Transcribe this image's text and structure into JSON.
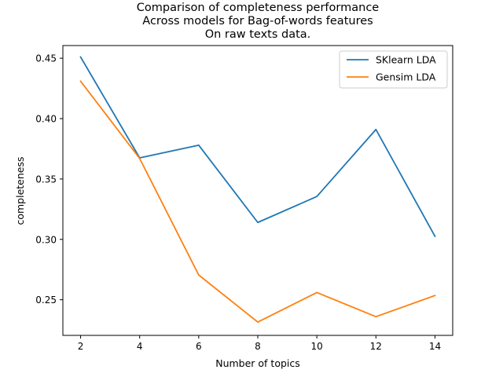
{
  "chart_data": {
    "type": "line",
    "title": [
      "Comparison of completeness performance",
      "Across models for Bag-of-words features",
      "On raw texts data."
    ],
    "xlabel": "Number of topics",
    "ylabel": "completeness",
    "x": [
      2,
      4,
      6,
      8,
      10,
      12,
      14
    ],
    "xticks": [
      "2",
      "4",
      "6",
      "8",
      "10",
      "12",
      "14"
    ],
    "xlim": [
      1.4,
      14.6
    ],
    "yticks": [
      "0.25",
      "0.30",
      "0.35",
      "0.40",
      "0.45"
    ],
    "ytick_values": [
      0.25,
      0.3,
      0.35,
      0.4,
      0.45
    ],
    "ylim": [
      0.2205,
      0.4605
    ],
    "grid": false,
    "legend_position": "top-right",
    "series": [
      {
        "name": "SKlearn LDA",
        "color": "#1f77b4",
        "values": [
          0.451,
          0.3675,
          0.378,
          0.314,
          0.3355,
          0.391,
          0.3025
        ]
      },
      {
        "name": "Gensim LDA",
        "color": "#ff7f0e",
        "values": [
          0.431,
          0.367,
          0.2705,
          0.2315,
          0.256,
          0.236,
          0.2535
        ]
      }
    ]
  }
}
